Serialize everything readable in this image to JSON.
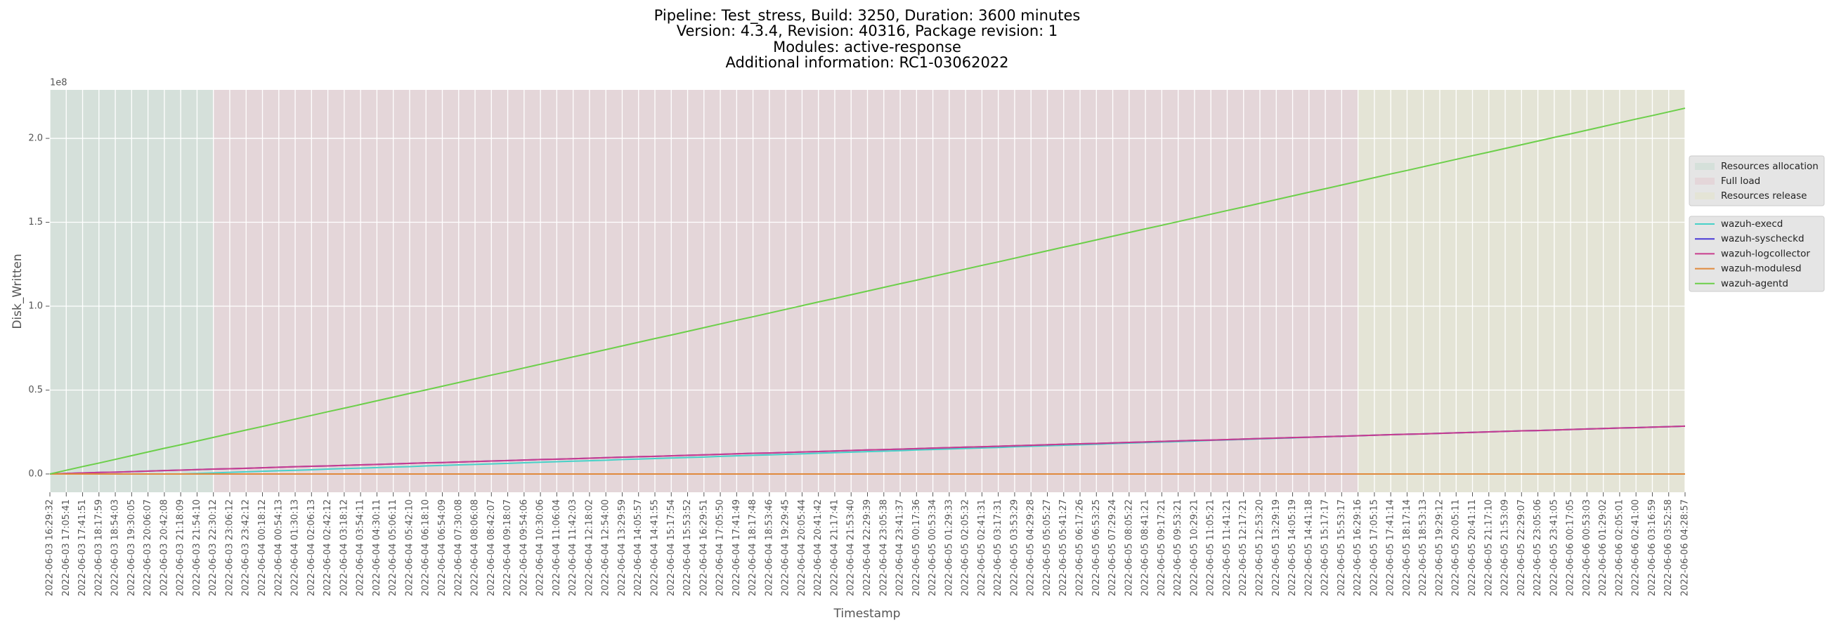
{
  "chart_data": {
    "type": "line",
    "title": [
      "Pipeline: Test_stress, Build: 3250, Duration: 3600 minutes",
      "Version: 4.3.4, Revision: 40316, Package revision: 1",
      "Modules: active-response",
      "Additional information: RC1-03062022"
    ],
    "xlabel": "Timestamp",
    "ylabel": "Disk_Written",
    "y_multiplier": "1e8",
    "grid": true,
    "legend": "right",
    "ylim": [
      -0.109,
      2.289
    ],
    "yticks": [
      {
        "value": 0,
        "label": "0.0"
      },
      0.5,
      {
        "value": 1,
        "label": "1.0"
      },
      1.5,
      {
        "value": 2,
        "label": "2.0"
      }
    ],
    "phases": [
      {
        "name": "Resources allocation",
        "color": "#d5e0da",
        "start": "2022-06-03 16:29:32",
        "end": "2022-06-03 22:30:12"
      },
      {
        "name": "Full load",
        "color": "#e4d6d9",
        "start": "2022-06-03 22:30:12",
        "end": "2022-06-05 16:29:16"
      },
      {
        "name": "Resources release",
        "color": "#e4e4d6",
        "start": "2022-06-05 16:29:16",
        "end": "2022-06-06 04:28:57"
      }
    ],
    "categories": [
      "2022-06-03 16:29:32",
      "2022-06-03 17:05:41",
      "2022-06-03 17:41:51",
      "2022-06-03 18:17:59",
      "2022-06-03 18:54:03",
      "2022-06-03 19:30:05",
      "2022-06-03 20:06:07",
      "2022-06-03 20:42:08",
      "2022-06-03 21:18:09",
      "2022-06-03 21:54:10",
      "2022-06-03 22:30:12",
      "2022-06-03 23:06:12",
      "2022-06-03 23:42:12",
      "2022-06-04 00:18:12",
      "2022-06-04 00:54:13",
      "2022-06-04 01:30:13",
      "2022-06-04 02:06:13",
      "2022-06-04 02:42:12",
      "2022-06-04 03:18:12",
      "2022-06-04 03:54:11",
      "2022-06-04 04:30:11",
      "2022-06-04 05:06:11",
      "2022-06-04 05:42:10",
      "2022-06-04 06:18:10",
      "2022-06-04 06:54:09",
      "2022-06-04 07:30:08",
      "2022-06-04 08:06:08",
      "2022-06-04 08:42:07",
      "2022-06-04 09:18:07",
      "2022-06-04 09:54:06",
      "2022-06-04 10:30:06",
      "2022-06-04 11:06:04",
      "2022-06-04 11:42:03",
      "2022-06-04 12:18:02",
      "2022-06-04 12:54:00",
      "2022-06-04 13:29:59",
      "2022-06-04 14:05:57",
      "2022-06-04 14:41:55",
      "2022-06-04 15:17:54",
      "2022-06-04 15:53:52",
      "2022-06-04 16:29:51",
      "2022-06-04 17:05:50",
      "2022-06-04 17:41:49",
      "2022-06-04 18:17:48",
      "2022-06-04 18:53:46",
      "2022-06-04 19:29:45",
      "2022-06-04 20:05:44",
      "2022-06-04 20:41:42",
      "2022-06-04 21:17:41",
      "2022-06-04 21:53:40",
      "2022-06-04 22:29:39",
      "2022-06-04 23:05:38",
      "2022-06-04 23:41:37",
      "2022-06-05 00:17:36",
      "2022-06-05 00:53:34",
      "2022-06-05 01:29:33",
      "2022-06-05 02:05:32",
      "2022-06-05 02:41:31",
      "2022-06-05 03:17:31",
      "2022-06-05 03:53:29",
      "2022-06-05 04:29:28",
      "2022-06-05 05:05:27",
      "2022-06-05 05:41:27",
      "2022-06-05 06:17:26",
      "2022-06-05 06:53:25",
      "2022-06-05 07:29:24",
      "2022-06-05 08:05:22",
      "2022-06-05 08:41:21",
      "2022-06-05 09:17:21",
      "2022-06-05 09:53:21",
      "2022-06-05 10:29:21",
      "2022-06-05 11:05:21",
      "2022-06-05 11:41:21",
      "2022-06-05 12:17:21",
      "2022-06-05 12:53:20",
      "2022-06-05 13:29:19",
      "2022-06-05 14:05:19",
      "2022-06-05 14:41:18",
      "2022-06-05 15:17:17",
      "2022-06-05 15:53:17",
      "2022-06-05 16:29:16",
      "2022-06-05 17:05:15",
      "2022-06-05 17:41:14",
      "2022-06-05 18:17:14",
      "2022-06-05 18:53:13",
      "2022-06-05 19:29:12",
      "2022-06-05 20:05:11",
      "2022-06-05 20:41:11",
      "2022-06-05 21:17:10",
      "2022-06-05 21:53:09",
      "2022-06-05 22:29:07",
      "2022-06-05 23:05:06",
      "2022-06-05 23:41:05",
      "2022-06-06 00:17:05",
      "2022-06-06 00:53:03",
      "2022-06-06 01:29:02",
      "2022-06-06 02:05:01",
      "2022-06-06 02:41:00",
      "2022-06-06 03:16:59",
      "2022-06-06 03:52:58",
      "2022-06-06 04:28:57"
    ],
    "series": [
      {
        "name": "wazuh-execd",
        "color": "#48d1c8",
        "values": [
          0,
          0,
          0,
          0,
          0,
          0,
          0,
          0,
          0,
          0.003,
          0.006,
          0.01,
          0.013,
          0.016,
          0.019,
          0.022,
          0.025,
          0.029,
          0.032,
          0.035,
          0.038,
          0.041,
          0.044,
          0.048,
          0.051,
          0.054,
          0.057,
          0.06,
          0.063,
          0.067,
          0.07,
          0.073,
          0.076,
          0.079,
          0.082,
          0.086,
          0.089,
          0.092,
          0.095,
          0.098,
          0.101,
          0.105,
          0.108,
          0.111,
          0.114,
          0.117,
          0.12,
          0.124,
          0.127,
          0.13,
          0.133,
          0.136,
          0.139,
          0.143,
          0.146,
          0.149,
          0.152,
          0.155,
          0.158,
          0.162,
          0.165,
          0.168,
          0.171,
          0.174,
          0.177,
          0.181,
          0.184,
          0.187,
          0.19,
          0.193,
          0.196,
          0.2,
          0.203,
          0.206,
          0.209,
          0.212,
          0.215,
          0.219,
          0.222,
          0.225,
          0.228,
          0.231,
          0.234,
          0.237,
          0.239,
          0.242,
          0.245,
          0.248,
          0.251,
          0.254,
          0.257,
          0.259,
          0.262,
          0.265,
          0.268,
          0.271,
          0.274,
          0.276,
          0.279,
          0.282,
          0.285
        ]
      },
      {
        "name": "wazuh-syscheckd",
        "color": "#4a3ad6",
        "values": [
          0,
          0.003,
          0.006,
          0.009,
          0.011,
          0.014,
          0.017,
          0.02,
          0.023,
          0.026,
          0.029,
          0.031,
          0.034,
          0.037,
          0.04,
          0.043,
          0.046,
          0.048,
          0.051,
          0.054,
          0.057,
          0.06,
          0.063,
          0.066,
          0.068,
          0.071,
          0.074,
          0.077,
          0.08,
          0.083,
          0.086,
          0.088,
          0.091,
          0.094,
          0.097,
          0.1,
          0.103,
          0.105,
          0.108,
          0.111,
          0.114,
          0.117,
          0.12,
          0.123,
          0.125,
          0.128,
          0.131,
          0.134,
          0.137,
          0.14,
          0.143,
          0.145,
          0.148,
          0.151,
          0.154,
          0.157,
          0.16,
          0.162,
          0.165,
          0.168,
          0.171,
          0.174,
          0.177,
          0.18,
          0.182,
          0.185,
          0.188,
          0.191,
          0.194,
          0.197,
          0.2,
          0.202,
          0.205,
          0.208,
          0.211,
          0.214,
          0.217,
          0.219,
          0.222,
          0.225,
          0.228,
          0.231,
          0.234,
          0.237,
          0.239,
          0.242,
          0.245,
          0.248,
          0.251,
          0.254,
          0.257,
          0.259,
          0.262,
          0.265,
          0.268,
          0.271,
          0.274,
          0.276,
          0.279,
          0.282,
          0.285
        ]
      },
      {
        "name": "wazuh-logcollector",
        "color": "#c93d8e",
        "values": [
          0,
          0.003,
          0.006,
          0.009,
          0.011,
          0.014,
          0.017,
          0.02,
          0.023,
          0.026,
          0.029,
          0.031,
          0.034,
          0.037,
          0.04,
          0.043,
          0.046,
          0.048,
          0.051,
          0.054,
          0.057,
          0.06,
          0.063,
          0.066,
          0.068,
          0.071,
          0.074,
          0.077,
          0.08,
          0.083,
          0.086,
          0.088,
          0.091,
          0.094,
          0.097,
          0.1,
          0.103,
          0.105,
          0.108,
          0.111,
          0.114,
          0.117,
          0.12,
          0.123,
          0.125,
          0.128,
          0.131,
          0.134,
          0.137,
          0.14,
          0.143,
          0.145,
          0.148,
          0.151,
          0.154,
          0.157,
          0.16,
          0.162,
          0.165,
          0.168,
          0.171,
          0.174,
          0.177,
          0.18,
          0.182,
          0.185,
          0.188,
          0.191,
          0.194,
          0.197,
          0.2,
          0.202,
          0.205,
          0.208,
          0.211,
          0.214,
          0.217,
          0.219,
          0.222,
          0.225,
          0.228,
          0.231,
          0.234,
          0.237,
          0.239,
          0.242,
          0.245,
          0.248,
          0.251,
          0.254,
          0.257,
          0.259,
          0.262,
          0.265,
          0.268,
          0.271,
          0.274,
          0.276,
          0.279,
          0.282,
          0.285
        ]
      },
      {
        "name": "wazuh-modulesd",
        "color": "#e08a3c",
        "values": [
          0,
          0,
          0,
          0,
          0,
          0,
          0,
          0,
          0,
          0,
          0,
          0,
          0,
          0,
          0,
          0,
          0,
          0,
          0,
          0,
          0,
          0,
          0,
          0,
          0,
          0,
          0,
          0,
          0,
          0,
          0,
          0,
          0,
          0,
          0,
          0,
          0,
          0,
          0,
          0,
          0,
          0,
          0,
          0,
          0,
          0,
          0,
          0,
          0,
          0,
          0,
          0,
          0,
          0,
          0,
          0,
          0,
          0,
          0,
          0,
          0,
          0,
          0,
          0,
          0,
          0,
          0,
          0,
          0,
          0,
          0,
          0,
          0,
          0,
          0,
          0,
          0,
          0,
          0,
          0,
          0,
          0,
          0,
          0,
          0,
          0,
          0,
          0,
          0,
          0,
          0,
          0,
          0,
          0,
          0,
          0,
          0,
          0,
          0,
          0,
          0
        ]
      },
      {
        "name": "wazuh-agentd",
        "color": "#6ccf4a",
        "values": [
          0,
          0.022,
          0.044,
          0.065,
          0.087,
          0.109,
          0.131,
          0.153,
          0.174,
          0.196,
          0.218,
          0.24,
          0.262,
          0.283,
          0.305,
          0.327,
          0.349,
          0.371,
          0.392,
          0.414,
          0.436,
          0.458,
          0.48,
          0.501,
          0.523,
          0.545,
          0.567,
          0.589,
          0.61,
          0.632,
          0.654,
          0.676,
          0.698,
          0.719,
          0.741,
          0.763,
          0.785,
          0.807,
          0.828,
          0.85,
          0.872,
          0.894,
          0.916,
          0.937,
          0.959,
          0.981,
          1.003,
          1.025,
          1.046,
          1.068,
          1.09,
          1.112,
          1.134,
          1.155,
          1.177,
          1.199,
          1.221,
          1.243,
          1.264,
          1.286,
          1.308,
          1.33,
          1.352,
          1.373,
          1.395,
          1.417,
          1.439,
          1.461,
          1.482,
          1.504,
          1.526,
          1.548,
          1.57,
          1.591,
          1.613,
          1.635,
          1.657,
          1.679,
          1.7,
          1.722,
          1.744,
          1.766,
          1.788,
          1.809,
          1.831,
          1.853,
          1.875,
          1.897,
          1.918,
          1.94,
          1.962,
          1.984,
          2.006,
          2.027,
          2.049,
          2.071,
          2.093,
          2.115,
          2.136,
          2.158,
          2.18
        ]
      }
    ]
  }
}
